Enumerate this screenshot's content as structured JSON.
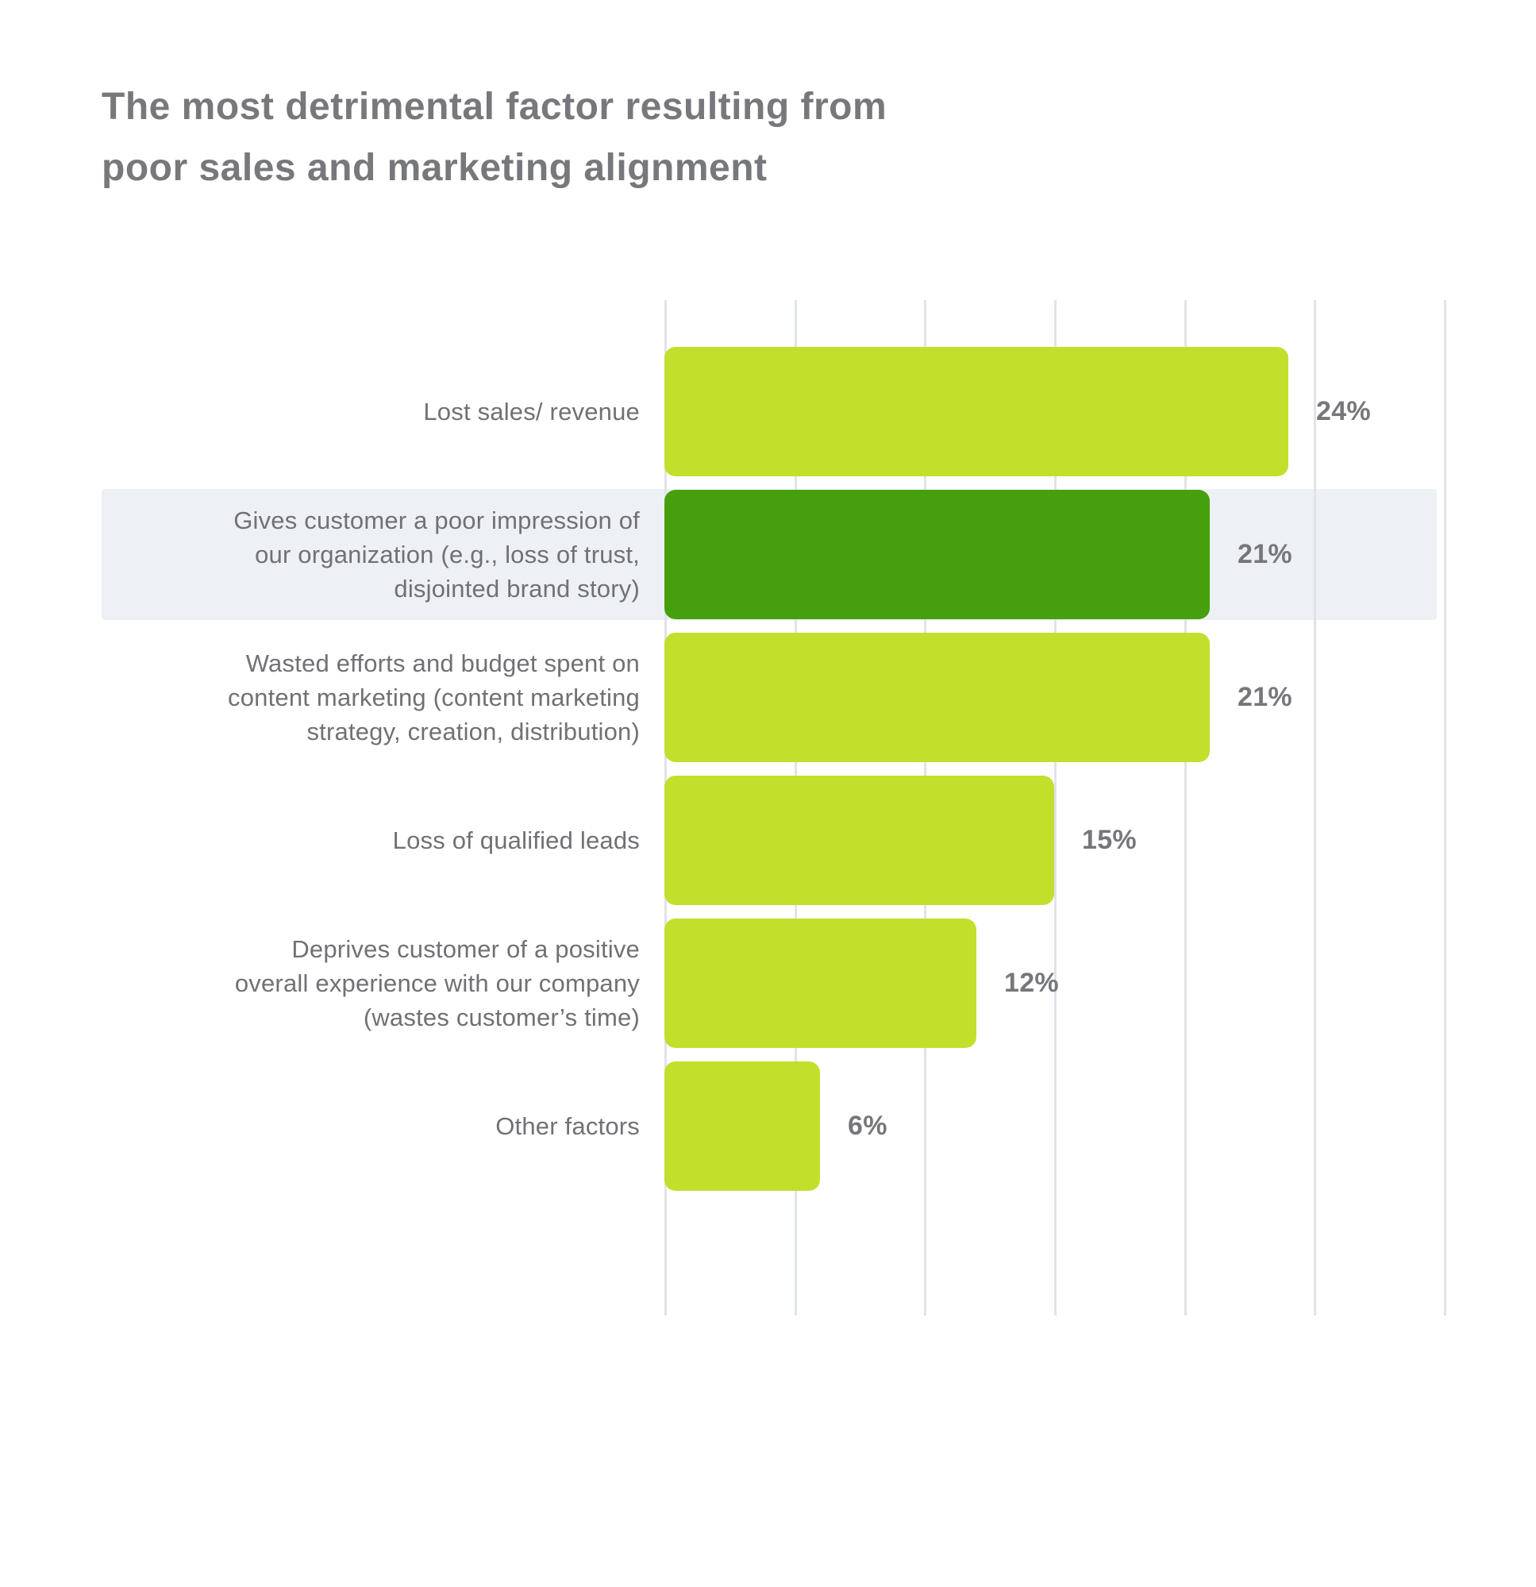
{
  "title": "The most detrimental factor resulting from\npoor sales and marketing alignment",
  "colors": {
    "bar": "#c2df2c",
    "bar_highlight": "#45a00b",
    "row_highlight_bg": "#edf0f4",
    "gridline": "#e0e3e8",
    "title_text": "#77787b",
    "label_text": "#707175",
    "value_text": "#76777a"
  },
  "chart_data": {
    "type": "bar",
    "orientation": "horizontal",
    "title": "The most detrimental factor resulting from poor sales and marketing alignment",
    "categories": [
      "Lost sales/ revenue",
      "Gives customer a poor impression of\nour organization (e.g., loss of trust,\ndisjointed brand story)",
      "Wasted efforts and budget spent on\ncontent marketing (content marketing\nstrategy, creation, distribution)",
      "Loss of qualified leads",
      "Deprives customer of a positive\noverall experience with our company\n(wastes customer’s time)",
      "Other factors"
    ],
    "values": [
      24,
      21,
      21,
      15,
      12,
      6
    ],
    "value_labels": [
      "24%",
      "21%",
      "21%",
      "15%",
      "12%",
      "6%"
    ],
    "highlighted_index": 1,
    "xlim": [
      0,
      30
    ],
    "gridline_step": 5,
    "grid": true,
    "legend": false,
    "xlabel": "",
    "ylabel": ""
  }
}
